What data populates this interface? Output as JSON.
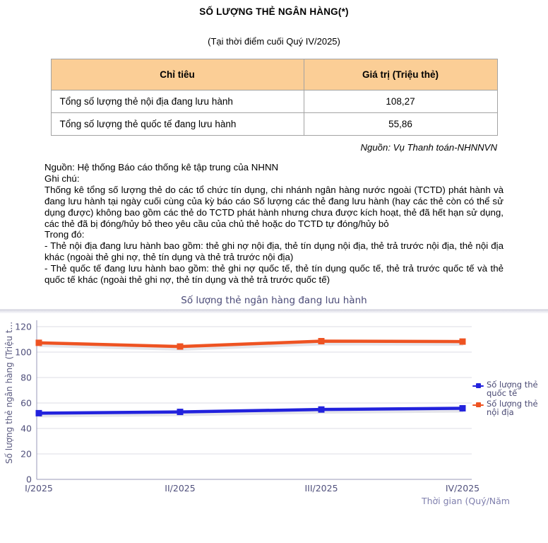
{
  "page": {
    "title": "SỐ LƯỢNG THẺ NGÂN HÀNG(*)",
    "subtitle": "(Tại thời điểm cuối Quý IV/2025)"
  },
  "table": {
    "headers": [
      "Chỉ tiêu",
      "Giá trị (Triệu thẻ)"
    ],
    "rows": [
      {
        "label": "Tổng số lượng thẻ nội địa đang lưu hành",
        "value": "108,27"
      },
      {
        "label": "Tổng số lượng thẻ quốc tế đang lưu hành",
        "value": "55,86"
      }
    ],
    "source_note": "Nguồn: Vụ Thanh toán-NHNNVN"
  },
  "notes": {
    "source_line": "Nguồn: Hệ thống Báo cáo thống kê tập trung của NHNN",
    "note_label": "Ghi chú:",
    "paragraph": "Thống kê tổng số lượng thẻ do các tổ chức tín dụng, chi nhánh ngân hàng nước ngoài (TCTD) phát hành và đang lưu hành tại ngày cuối cùng của kỳ báo cáo Số lượng các thẻ đang lưu hành (hay các thẻ còn có thể sử dụng được) không bao gồm các thẻ do TCTD phát hành nhưng chưa được kích hoạt, thẻ đã hết hạn sử dụng, các thẻ đã bị đóng/hủy bỏ theo yêu cầu của chủ thẻ hoặc do TCTD tự đóng/hủy bỏ",
    "in_which_label": "Trong đó:",
    "bullet_domestic": "- Thẻ nội địa đang lưu hành bao gồm: thẻ ghi nợ nội địa, thẻ tín dụng nội địa, thẻ trả trước nội địa, thẻ nội địa khác (ngoài thẻ ghi nợ, thẻ tín dụng và thẻ trả trước nội địa)",
    "bullet_international": "- Thẻ quốc tế đang lưu hành bao gồm: thẻ ghi nợ quốc tế, thẻ tín dụng quốc tế, thẻ trả trước quốc tế và thẻ quốc tế khác (ngoài thẻ ghi nợ, thẻ tín dụng và thẻ trả trước quốc tế)"
  },
  "chart_data": {
    "type": "line",
    "title": "Số lượng thẻ ngân hàng đang lưu hành",
    "xlabel": "Thời gian (Quý/Năm",
    "ylabel": "Số lượng thẻ ngân hàng (Triệu t...",
    "categories": [
      "I/2025",
      "II/2025",
      "III/2025",
      "IV/2025"
    ],
    "series": [
      {
        "name": "Số lượng thẻ quốc tế",
        "color": "#2222dd",
        "values": [
          52.0,
          53.0,
          54.9,
          55.86
        ]
      },
      {
        "name": "Số lượng thẻ nội địa",
        "color": "#ee5322",
        "values": [
          107.3,
          104.4,
          108.6,
          108.27
        ]
      }
    ],
    "ylim": [
      0,
      120
    ],
    "yticks": [
      0,
      20,
      40,
      60,
      80,
      100,
      120
    ],
    "grid": true,
    "legend_position": "right",
    "marker": "square"
  }
}
